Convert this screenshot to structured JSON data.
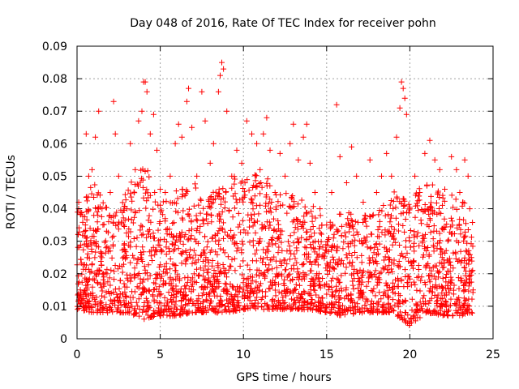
{
  "chart_data": {
    "type": "scatter",
    "title": "Day 048 of 2016, Rate Of TEC Index for receiver pohn",
    "xlabel": "GPS time / hours",
    "ylabel": "ROTI / TECUs",
    "xlim": [
      0,
      25
    ],
    "ylim": [
      0,
      0.09
    ],
    "x_ticks": [
      0,
      5,
      10,
      15,
      20,
      25
    ],
    "x_tick_labels": [
      "0",
      "5",
      "10",
      "15",
      "20",
      "25"
    ],
    "y_ticks": [
      0,
      0.01,
      0.02,
      0.03,
      0.04,
      0.05,
      0.06,
      0.07,
      0.08,
      0.09
    ],
    "y_tick_labels": [
      "0",
      "0.01",
      "0.02",
      "0.03",
      "0.04",
      "0.05",
      "0.06",
      "0.07",
      "0.08",
      "0.09"
    ],
    "grid": true,
    "marker": "plus",
    "color": "#ff0000",
    "series": [
      {
        "name": "ROTI",
        "points": [
          [
            0.1,
            0.042
          ],
          [
            0.2,
            0.015
          ],
          [
            0.3,
            0.012
          ],
          [
            0.5,
            0.035
          ],
          [
            0.55,
            0.063
          ],
          [
            0.7,
            0.05
          ],
          [
            0.9,
            0.052
          ],
          [
            1.1,
            0.062
          ],
          [
            1.3,
            0.07
          ],
          [
            1.5,
            0.04
          ],
          [
            2.0,
            0.045
          ],
          [
            2.2,
            0.073
          ],
          [
            2.3,
            0.063
          ],
          [
            2.5,
            0.05
          ],
          [
            3.0,
            0.04
          ],
          [
            3.2,
            0.06
          ],
          [
            3.5,
            0.052
          ],
          [
            3.7,
            0.067
          ],
          [
            3.9,
            0.07
          ],
          [
            4.0,
            0.079
          ],
          [
            4.1,
            0.079
          ],
          [
            4.2,
            0.076
          ],
          [
            4.4,
            0.063
          ],
          [
            4.6,
            0.069
          ],
          [
            4.8,
            0.058
          ],
          [
            5.0,
            0.046
          ],
          [
            5.3,
            0.045
          ],
          [
            5.6,
            0.05
          ],
          [
            5.9,
            0.06
          ],
          [
            6.1,
            0.066
          ],
          [
            6.3,
            0.062
          ],
          [
            6.6,
            0.073
          ],
          [
            6.7,
            0.077
          ],
          [
            6.9,
            0.065
          ],
          [
            7.2,
            0.05
          ],
          [
            7.5,
            0.076
          ],
          [
            7.7,
            0.067
          ],
          [
            8.0,
            0.054
          ],
          [
            8.2,
            0.06
          ],
          [
            8.5,
            0.076
          ],
          [
            8.6,
            0.081
          ],
          [
            8.7,
            0.085
          ],
          [
            8.8,
            0.083
          ],
          [
            9.0,
            0.07
          ],
          [
            9.3,
            0.05
          ],
          [
            9.6,
            0.058
          ],
          [
            9.9,
            0.054
          ],
          [
            10.2,
            0.067
          ],
          [
            10.5,
            0.063
          ],
          [
            10.8,
            0.06
          ],
          [
            11.0,
            0.052
          ],
          [
            11.2,
            0.063
          ],
          [
            11.4,
            0.068
          ],
          [
            11.6,
            0.058
          ],
          [
            11.9,
            0.045
          ],
          [
            12.2,
            0.057
          ],
          [
            12.5,
            0.05
          ],
          [
            12.8,
            0.06
          ],
          [
            13.0,
            0.066
          ],
          [
            13.3,
            0.055
          ],
          [
            13.6,
            0.062
          ],
          [
            13.8,
            0.066
          ],
          [
            14.0,
            0.054
          ],
          [
            14.3,
            0.045
          ],
          [
            14.6,
            0.04
          ],
          [
            15.0,
            0.035
          ],
          [
            15.3,
            0.045
          ],
          [
            15.6,
            0.072
          ],
          [
            15.8,
            0.056
          ],
          [
            16.2,
            0.048
          ],
          [
            16.5,
            0.059
          ],
          [
            16.8,
            0.05
          ],
          [
            17.2,
            0.042
          ],
          [
            17.6,
            0.055
          ],
          [
            18.0,
            0.045
          ],
          [
            18.3,
            0.05
          ],
          [
            18.6,
            0.057
          ],
          [
            18.9,
            0.05
          ],
          [
            19.2,
            0.062
          ],
          [
            19.4,
            0.071
          ],
          [
            19.5,
            0.079
          ],
          [
            19.6,
            0.077
          ],
          [
            19.7,
            0.074
          ],
          [
            19.8,
            0.069
          ],
          [
            20.0,
            0.04
          ],
          [
            20.3,
            0.05
          ],
          [
            20.6,
            0.045
          ],
          [
            20.9,
            0.057
          ],
          [
            21.2,
            0.061
          ],
          [
            21.5,
            0.055
          ],
          [
            21.8,
            0.052
          ],
          [
            22.1,
            0.046
          ],
          [
            22.5,
            0.056
          ],
          [
            22.8,
            0.052
          ],
          [
            23.0,
            0.045
          ],
          [
            23.3,
            0.055
          ],
          [
            23.5,
            0.05
          ],
          [
            23.6,
            0.04
          ],
          [
            23.7,
            0.025
          ],
          [
            23.8,
            0.015
          ]
        ]
      }
    ],
    "envelope": {
      "x": [
        0,
        1,
        2,
        3,
        4,
        5,
        6,
        7,
        8,
        9,
        10,
        11,
        12,
        13,
        14,
        15,
        16,
        17,
        18,
        19,
        20,
        21,
        22,
        23,
        23.8
      ],
      "y_low": [
        0.009,
        0.008,
        0.008,
        0.008,
        0.006,
        0.007,
        0.007,
        0.008,
        0.008,
        0.008,
        0.009,
        0.009,
        0.009,
        0.009,
        0.009,
        0.008,
        0.007,
        0.008,
        0.008,
        0.008,
        0.004,
        0.008,
        0.007,
        0.007,
        0.008
      ],
      "y_high": [
        0.04,
        0.048,
        0.04,
        0.046,
        0.055,
        0.042,
        0.046,
        0.048,
        0.044,
        0.05,
        0.05,
        0.052,
        0.046,
        0.044,
        0.042,
        0.036,
        0.04,
        0.038,
        0.04,
        0.046,
        0.042,
        0.05,
        0.044,
        0.045,
        0.036
      ]
    }
  }
}
